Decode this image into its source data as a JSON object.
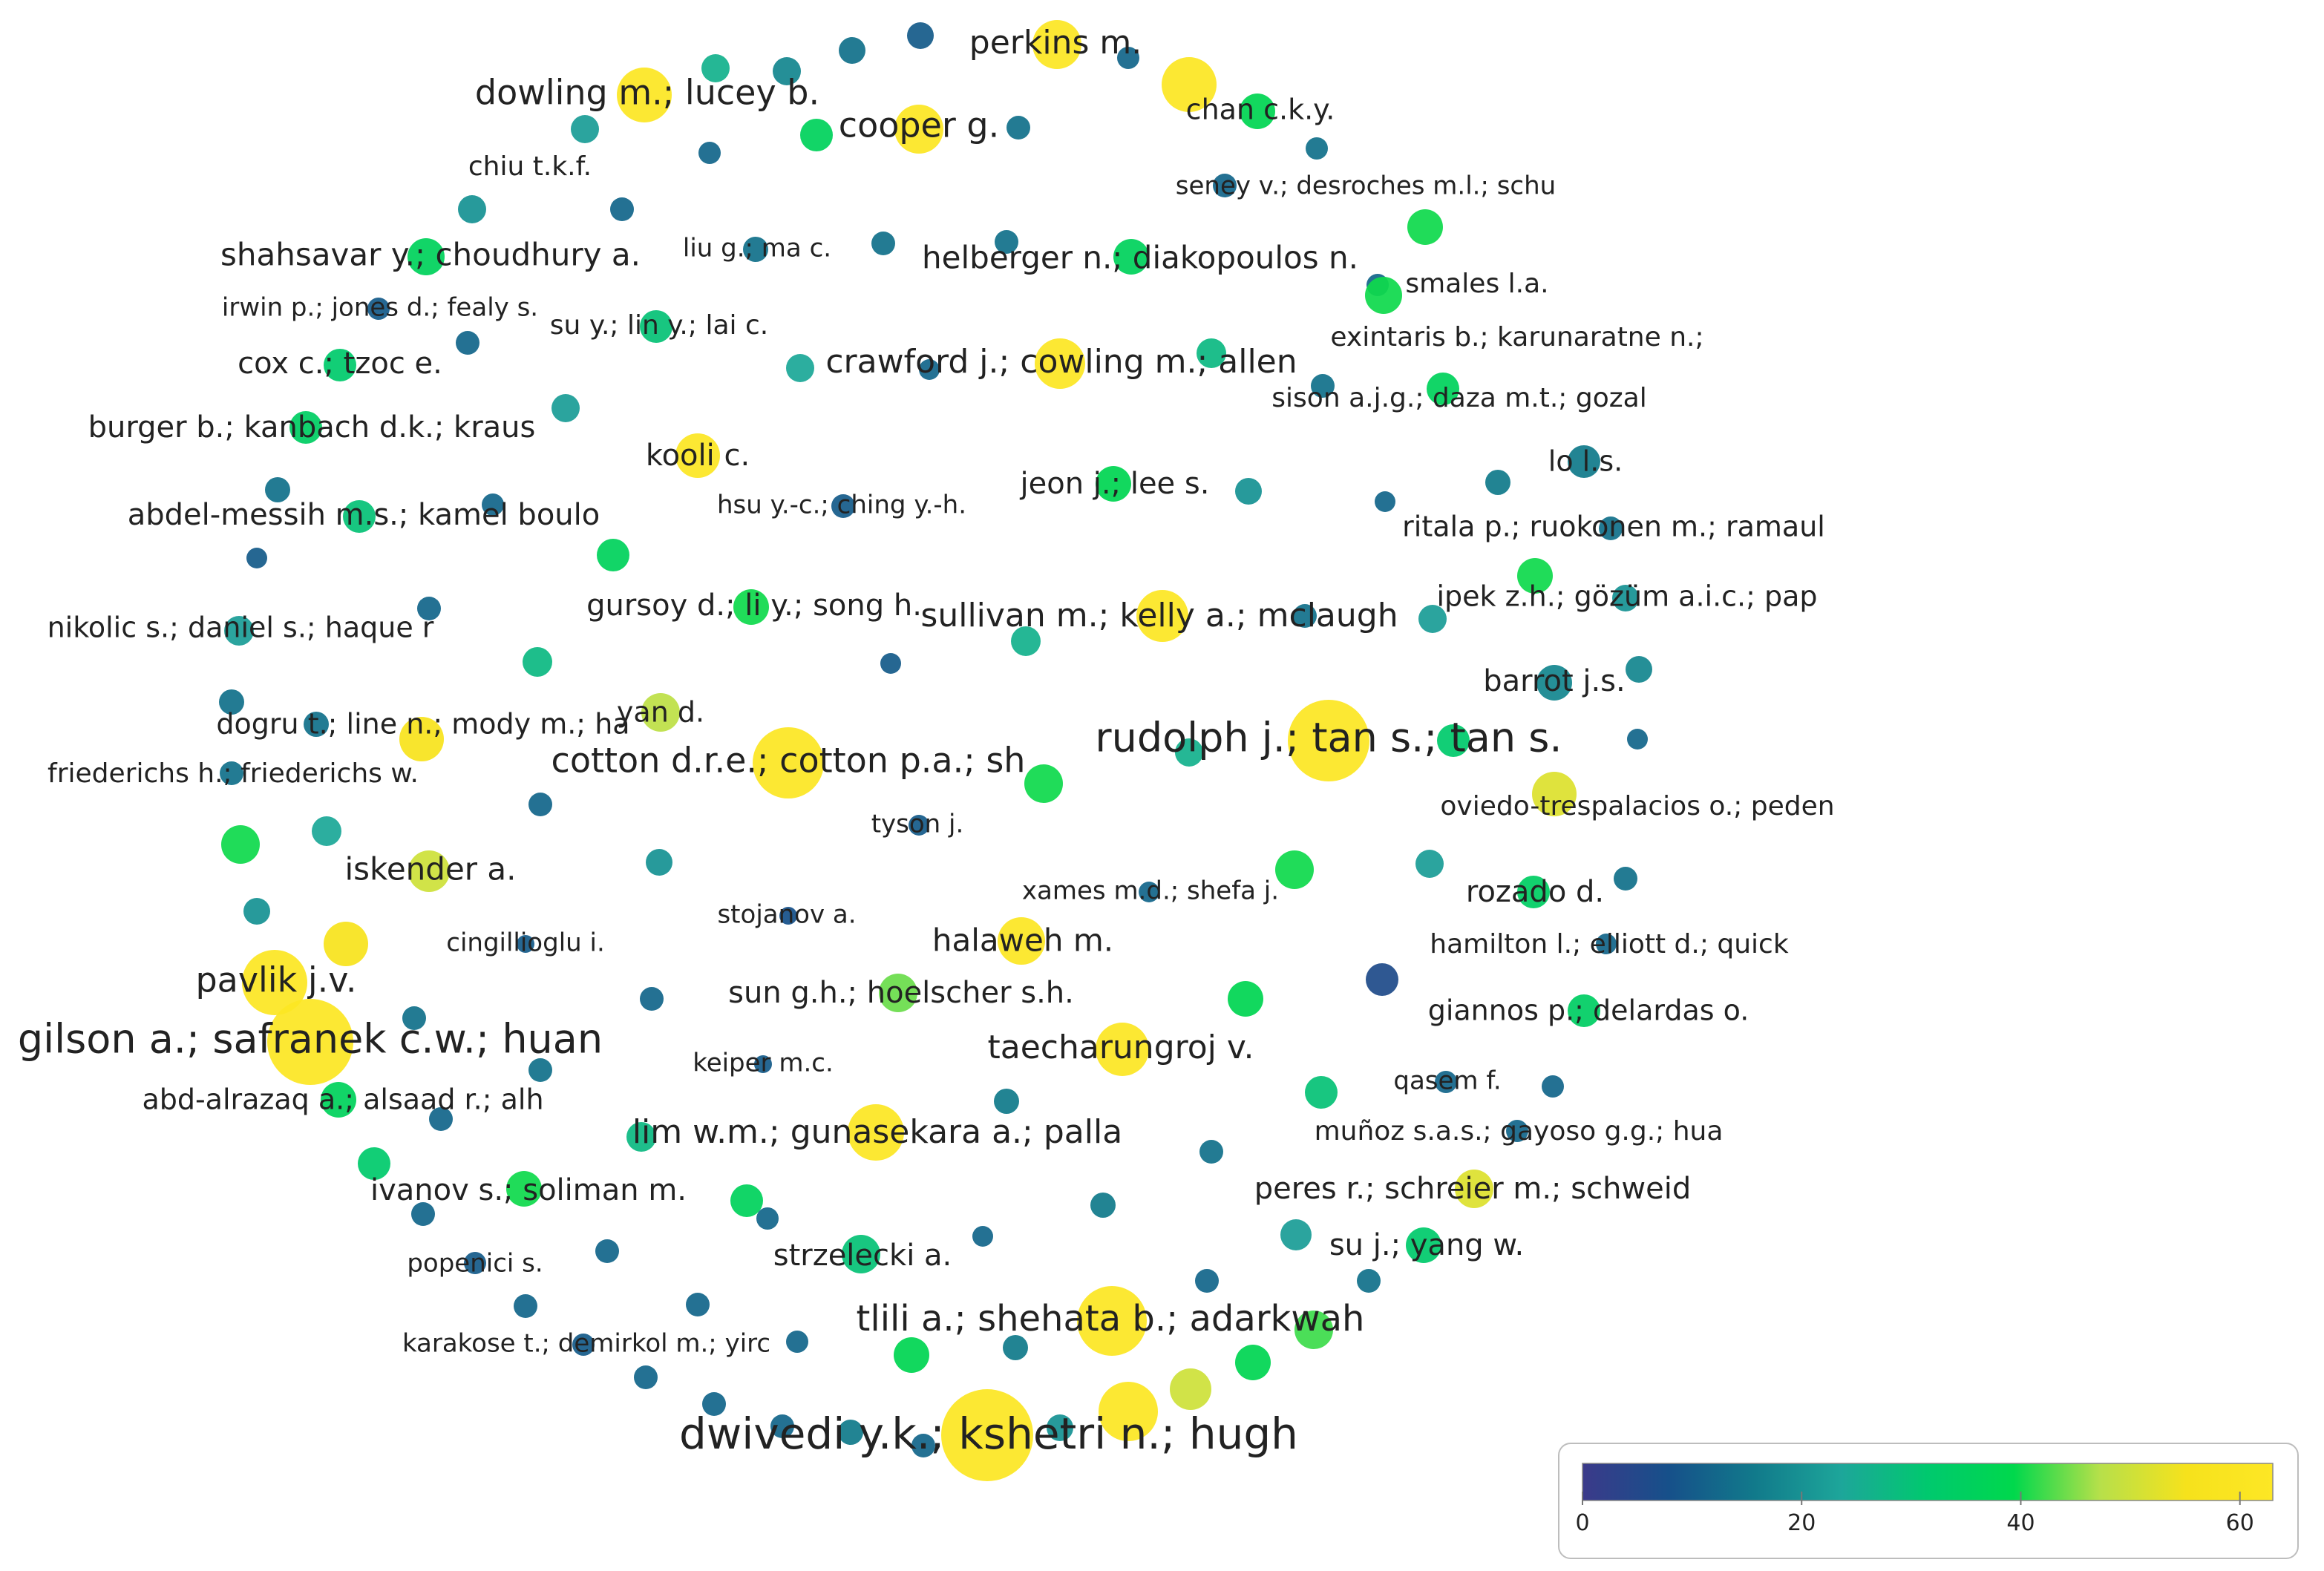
{
  "colorbar": {
    "min": 0,
    "max": 63,
    "ticks": [
      {
        "label": "0",
        "value": 0
      },
      {
        "label": "20",
        "value": 20
      },
      {
        "label": "40",
        "value": 40
      },
      {
        "label": "60",
        "value": 60
      }
    ],
    "colors": [
      "#3b3a8a",
      "#16508a",
      "#117a8b",
      "#1da69a",
      "#00c96e",
      "#00d84c",
      "#b7e04a",
      "#f6e21c",
      "#fde725"
    ]
  },
  "labels": [
    {
      "text": "perkins m.",
      "node": 0,
      "size": 44
    },
    {
      "text": "dowling m.; lucey b.",
      "node": 1,
      "size": 46
    },
    {
      "text": "cooper g.",
      "node": 2,
      "size": 46
    },
    {
      "text": "chan c.k.y.",
      "node": 3,
      "size": 38
    },
    {
      "text": "chiu t.k.f.",
      "node": 4,
      "size": 36
    },
    {
      "text": "seney v.; desroches m.l.; schu",
      "node": 5,
      "size": 34
    },
    {
      "text": "shahsavar y.; choudhury a.",
      "node": 6,
      "size": 42
    },
    {
      "text": "liu g.; ma c.",
      "node": 7,
      "size": 34
    },
    {
      "text": "helberger n.; diakopoulos n.",
      "node": 8,
      "size": 42
    },
    {
      "text": "smales l.a.",
      "node": 9,
      "size": 36
    },
    {
      "text": "irwin p.; jones d.; fealy s.",
      "node": 10,
      "size": 34
    },
    {
      "text": "su y.; lin y.; lai c.",
      "node": 11,
      "size": 36
    },
    {
      "text": "exintaris b.; karunaratne n.;",
      "node": 12,
      "size": 36
    },
    {
      "text": "cox c.; tzoc e.",
      "node": 13,
      "size": 40
    },
    {
      "text": "crawford j.; cowling m.; allen",
      "node": 14,
      "size": 44
    },
    {
      "text": "sison a.j.g.; daza m.t.; gozal",
      "node": 15,
      "size": 36
    },
    {
      "text": "burger b.; kanbach d.k.; kraus",
      "node": 16,
      "size": 40
    },
    {
      "text": "kooli c.",
      "node": 17,
      "size": 40
    },
    {
      "text": "lo l.s.",
      "node": 18,
      "size": 38
    },
    {
      "text": "jeon j.; lee s.",
      "node": 19,
      "size": 40
    },
    {
      "text": "hsu y.-c.; ching y.-h.",
      "node": 20,
      "size": 34
    },
    {
      "text": "abdel-messih m.s.; kamel boulo",
      "node": 21,
      "size": 40
    },
    {
      "text": "ritala p.; ruokonen m.; ramaul",
      "node": 22,
      "size": 38
    },
    {
      "text": "i̇pek z.h.; gözüm a.i̇.c.; pap",
      "node": 23,
      "size": 38
    },
    {
      "text": "gursoy d.; li y.; song h.",
      "node": 24,
      "size": 40
    },
    {
      "text": "sullivan m.; kelly a.; mclaugh",
      "node": 25,
      "size": 44
    },
    {
      "text": "nikolic s.; daniel s.; haque r",
      "node": 26,
      "size": 38
    },
    {
      "text": "barrot j.s.",
      "node": 27,
      "size": 40
    },
    {
      "text": "yan d.",
      "node": 28,
      "size": 38
    },
    {
      "text": "dogru t.; line n.; mody m.; ha",
      "node": 29,
      "size": 38
    },
    {
      "text": "rudolph j.; tan s.; tan s.",
      "node": 30,
      "size": 54
    },
    {
      "text": "cotton d.r.e.; cotton p.a.; sh",
      "node": 31,
      "size": 46
    },
    {
      "text": "friederichs h.; friederichs w.",
      "node": 32,
      "size": 36
    },
    {
      "text": "oviedo-trespalacios o.; peden",
      "node": 33,
      "size": 36
    },
    {
      "text": "tyson j.",
      "node": 34,
      "size": 34
    },
    {
      "text": "iskender a.",
      "node": 35,
      "size": 42
    },
    {
      "text": "xames m.d.; shefa j.",
      "node": 36,
      "size": 34
    },
    {
      "text": "rozado d.",
      "node": 37,
      "size": 40
    },
    {
      "text": "stojanov a.",
      "node": 38,
      "size": 34
    },
    {
      "text": "cingillioglu i.",
      "node": 39,
      "size": 34
    },
    {
      "text": "halaweh m.",
      "node": 40,
      "size": 42
    },
    {
      "text": "hamilton l.; elliott d.; quick",
      "node": 41,
      "size": 36
    },
    {
      "text": "pavlik j.v.",
      "node": 42,
      "size": 46
    },
    {
      "text": "sun g.h.; hoelscher s.h.",
      "node": 43,
      "size": 40
    },
    {
      "text": "giannos p.; delardas o.",
      "node": 44,
      "size": 38
    },
    {
      "text": "gilson a.; safranek c.w.; huan",
      "node": 45,
      "size": 54
    },
    {
      "text": "taecharungroj v.",
      "node": 46,
      "size": 44
    },
    {
      "text": "keiper m.c.",
      "node": 47,
      "size": 34
    },
    {
      "text": "qasem f.",
      "node": 48,
      "size": 34
    },
    {
      "text": "abd-alrazaq a.; alsaad r.; alh",
      "node": 49,
      "size": 38
    },
    {
      "text": "lim w.m.; gunasekara a.; palla",
      "node": 50,
      "size": 44
    },
    {
      "text": "muñoz s.a.s.; gayoso g.g.; hua",
      "node": 51,
      "size": 36
    },
    {
      "text": "ivanov s.; soliman m.",
      "node": 52,
      "size": 40
    },
    {
      "text": "peres r.; schreier m.; schweid",
      "node": 53,
      "size": 40
    },
    {
      "text": "strzelecki a.",
      "node": 54,
      "size": 40
    },
    {
      "text": "su j.; yang w.",
      "node": 55,
      "size": 40
    },
    {
      "text": "popenici s.",
      "node": 56,
      "size": 34
    },
    {
      "text": "tlili a.; shehata b.; adarkwah",
      "node": 57,
      "size": 48
    },
    {
      "text": "karakose t.; demirkol m.; yirc",
      "node": 58,
      "size": 34
    },
    {
      "text": "dwivedi y.k.; kshetri n.; hugh",
      "node": 59,
      "size": 58
    }
  ]
}
